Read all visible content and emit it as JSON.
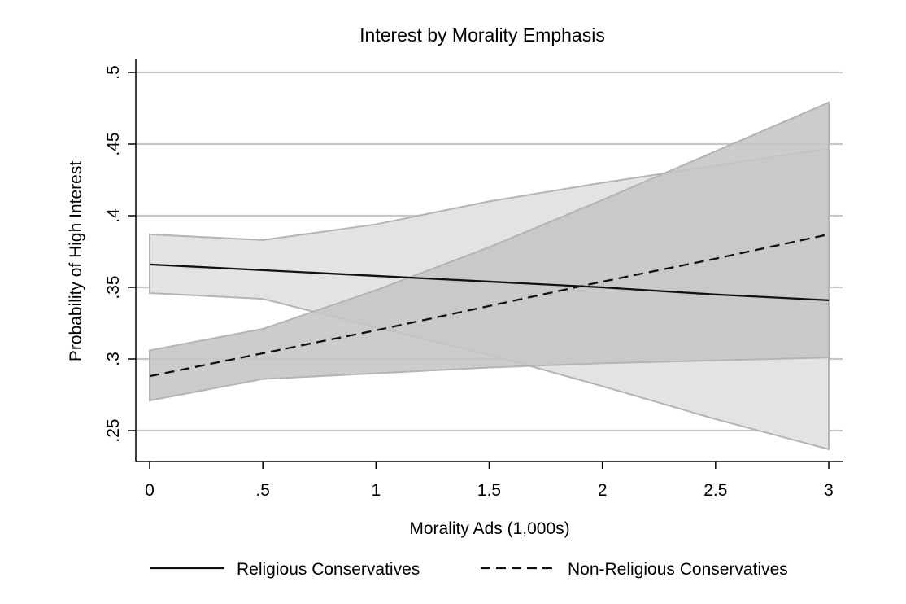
{
  "chart_data": {
    "type": "line",
    "title": "Interest by Morality Emphasis",
    "xlabel": "Morality Ads (1,000s)",
    "ylabel": "Probability of High Interest",
    "xlim": [
      0,
      3
    ],
    "ylim": [
      0.25,
      0.5
    ],
    "xticks": [
      0,
      0.5,
      1,
      1.5,
      2,
      2.5,
      3
    ],
    "xtick_labels": [
      "0",
      ".5",
      "1",
      "1.5",
      "2",
      "2.5",
      "3"
    ],
    "yticks": [
      0.25,
      0.3,
      0.35,
      0.4,
      0.45,
      0.5
    ],
    "ytick_labels": [
      ".25",
      ".3",
      ".35",
      ".4",
      ".45",
      ".5"
    ],
    "grid": "horizontal",
    "legend_position": "bottom",
    "x": [
      0,
      0.5,
      1,
      1.5,
      2,
      2.5,
      3
    ],
    "series": [
      {
        "name": "Religious Conservatives",
        "line_style": "solid",
        "band_color": "#e3e3e3",
        "values": [
          0.366,
          0.362,
          0.358,
          0.354,
          0.35,
          0.345,
          0.341
        ],
        "ci_lower": [
          0.346,
          0.342,
          0.322,
          0.303,
          0.281,
          0.258,
          0.237
        ],
        "ci_upper": [
          0.387,
          0.383,
          0.394,
          0.41,
          0.423,
          0.435,
          0.447
        ]
      },
      {
        "name": "Non-Religious Conservatives",
        "line_style": "dashed",
        "band_color": "#c4c6c6",
        "values": [
          0.288,
          0.304,
          0.32,
          0.337,
          0.354,
          0.37,
          0.387
        ],
        "ci_lower": [
          0.271,
          0.286,
          0.29,
          0.294,
          0.297,
          0.299,
          0.301
        ],
        "ci_upper": [
          0.306,
          0.321,
          0.348,
          0.378,
          0.411,
          0.445,
          0.479
        ]
      }
    ]
  }
}
